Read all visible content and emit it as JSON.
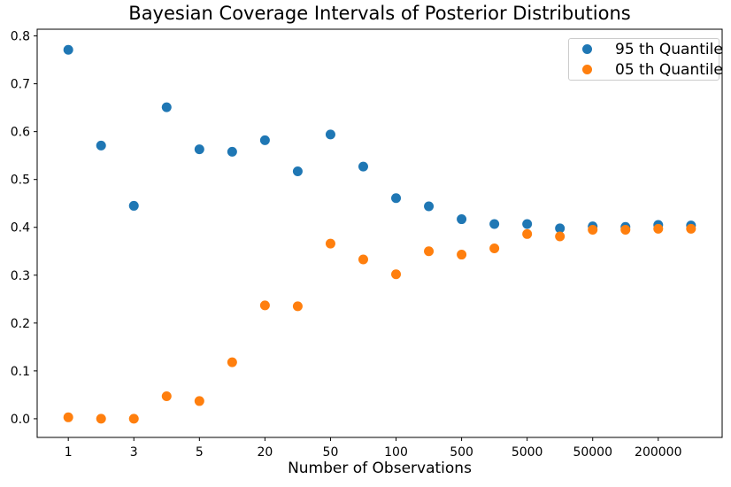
{
  "chart_data": {
    "type": "scatter",
    "title": "Bayesian Coverage Intervals of Posterior Distributions",
    "xlabel": "Number of Observations",
    "ylabel": "",
    "grid": false,
    "legend_position": "upper right",
    "num_points_per_series": 20,
    "x_axis_note": "20 points evenly spaced; tick marks label every second point",
    "x_tick_labels": [
      "1",
      "3",
      "5",
      "20",
      "50",
      "100",
      "500",
      "5000",
      "50000",
      "200000"
    ],
    "x_tick_positions": [
      0,
      2,
      4,
      6,
      8,
      10,
      12,
      14,
      16,
      18
    ],
    "y_ticks": [
      0.0,
      0.1,
      0.2,
      0.3,
      0.4,
      0.5,
      0.6,
      0.7,
      0.8
    ],
    "ylim": [
      -0.039,
      0.814
    ],
    "xlim_index": [
      -0.95,
      19.95
    ],
    "series": [
      {
        "name": "95 th Quantile",
        "color": "#1f77b4",
        "values": [
          0.771,
          0.571,
          0.445,
          0.651,
          0.563,
          0.558,
          0.582,
          0.517,
          0.594,
          0.527,
          0.461,
          0.444,
          0.417,
          0.407,
          0.407,
          0.398,
          0.402,
          0.401,
          0.405,
          0.404
        ]
      },
      {
        "name": "05 th Quantile",
        "color": "#ff7f0e",
        "values": [
          0.003,
          0.0,
          0.0,
          0.047,
          0.037,
          0.118,
          0.237,
          0.235,
          0.366,
          0.333,
          0.302,
          0.35,
          0.343,
          0.356,
          0.386,
          0.381,
          0.395,
          0.395,
          0.397,
          0.397
        ]
      }
    ]
  },
  "colors": {
    "series_95th": "#1f77b4",
    "series_05th": "#ff7f0e",
    "axis": "#000000",
    "legend_border": "#cccccc",
    "background": "#ffffff"
  }
}
